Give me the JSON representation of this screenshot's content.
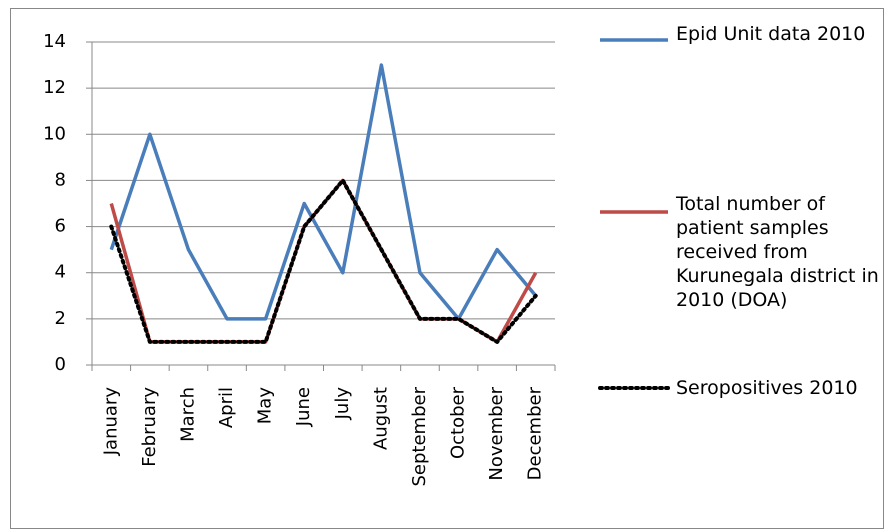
{
  "chart_data": {
    "type": "line",
    "categories": [
      "January",
      "February",
      "March",
      "April",
      "May",
      "June",
      "July",
      "August",
      "September",
      "October",
      "November",
      "December"
    ],
    "series": [
      {
        "name": "Epid Unit data 2010",
        "color": "#4a7ebb",
        "values": [
          5,
          10,
          5,
          2,
          2,
          7,
          4,
          13,
          4,
          2,
          5,
          3
        ]
      },
      {
        "name": "Total number of patient samples received from Kurunegala district in 2010 (DOA)",
        "color": "#be4b48",
        "values": [
          7,
          1,
          1,
          1,
          1,
          6,
          8,
          5,
          2,
          2,
          1,
          4
        ]
      },
      {
        "name": "Seropositives 2010",
        "color": "#000000",
        "values": [
          6,
          1,
          1,
          1,
          1,
          6,
          8,
          5,
          2,
          2,
          1,
          3
        ]
      }
    ],
    "ylim": [
      0,
      14
    ],
    "yticks": [
      0,
      2,
      4,
      6,
      8,
      10,
      12,
      14
    ],
    "grid": true,
    "legend": "right"
  }
}
